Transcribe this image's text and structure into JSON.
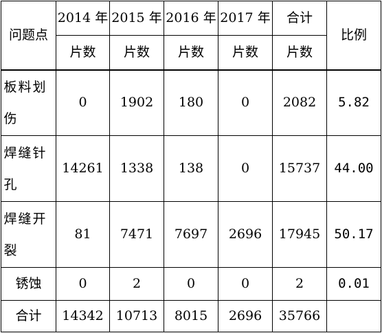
{
  "header": {
    "row_label": "问题点",
    "years": [
      "2014 年",
      "2015 年",
      "2016 年",
      "2017 年"
    ],
    "total_label": "合计",
    "ratio_label": "比例",
    "unit_label": "片数"
  },
  "rows": [
    {
      "label": "板料划伤",
      "values": [
        "0",
        "1902",
        "180",
        "0"
      ],
      "total": "2082",
      "ratio": "5.82"
    },
    {
      "label": "焊缝针孔",
      "values": [
        "14261",
        "1338",
        "138",
        "0"
      ],
      "total": "15737",
      "ratio": "44.00"
    },
    {
      "label": "焊缝开裂",
      "values": [
        "81",
        "7471",
        "7697",
        "2696"
      ],
      "total": "17945",
      "ratio": "50.17"
    },
    {
      "label": "锈蚀",
      "values": [
        "0",
        "2",
        "0",
        "0"
      ],
      "total": "2",
      "ratio": "0.01"
    }
  ],
  "footer": {
    "label": "合计",
    "values": [
      "14342",
      "10713",
      "8015",
      "2696"
    ],
    "total": "35766",
    "ratio": ""
  }
}
